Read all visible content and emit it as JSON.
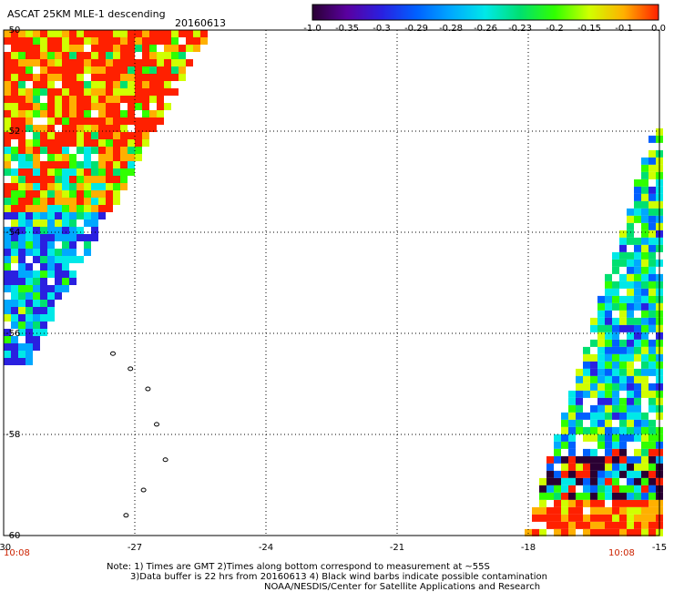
{
  "chart_data": {
    "type": "heatmap",
    "title": "ASCAT 25KM MLE-1 descending",
    "date": "20160613",
    "x_ticks": [
      -30,
      -27,
      -24,
      -21,
      -18,
      -15
    ],
    "y_ticks": [
      -50,
      -52,
      -54,
      -56,
      -58,
      -60
    ],
    "xlim": [
      -30,
      -15
    ],
    "ylim": [
      -60,
      -50
    ],
    "colorbar": {
      "tick_labels": [
        "-1.0",
        "-0.35",
        "-0.3",
        "-0.29",
        "-0.28",
        "-0.26",
        "-0.23",
        "-0.2",
        "-0.15",
        "-0.1",
        "0.0"
      ],
      "colors": [
        "#2a0033",
        "#5a00a0",
        "#2a20e0",
        "#0060ff",
        "#00a8ff",
        "#00e8e8",
        "#00e070",
        "#30ff00",
        "#d0ff00",
        "#ffb000",
        "#ff2000"
      ]
    },
    "swaths": [
      {
        "name": "west swath",
        "polygon": [
          [
            -30,
            -50
          ],
          [
            -25.4,
            -50
          ],
          [
            -29.5,
            -56.5
          ],
          [
            -30,
            -56.5
          ]
        ],
        "time": "10:08",
        "dominant": "high values near 0.0 in north, lower (-0.3 to -0.26) in south"
      },
      {
        "name": "east swath",
        "polygon": [
          [
            -15,
            -51.8
          ],
          [
            -15,
            -60
          ],
          [
            -18,
            -60
          ]
        ],
        "time": "10:08",
        "dominant": "mixed -0.29 to -0.15, band of -1.0 near -59S, high near -60S"
      }
    ],
    "grid": true
  },
  "notes": {
    "line1": "Note: 1) Times are GMT 2)Times along bottom correspond to measurement at ~55S",
    "line2": "3)Data buffer is 22 hrs from 20160613 4) Black wind barbs indicate possible contamination",
    "line3": "NOAA/NESDIS/Center for Satellite Applications and Research"
  },
  "times": {
    "left": "10:08",
    "right": "10:08"
  }
}
